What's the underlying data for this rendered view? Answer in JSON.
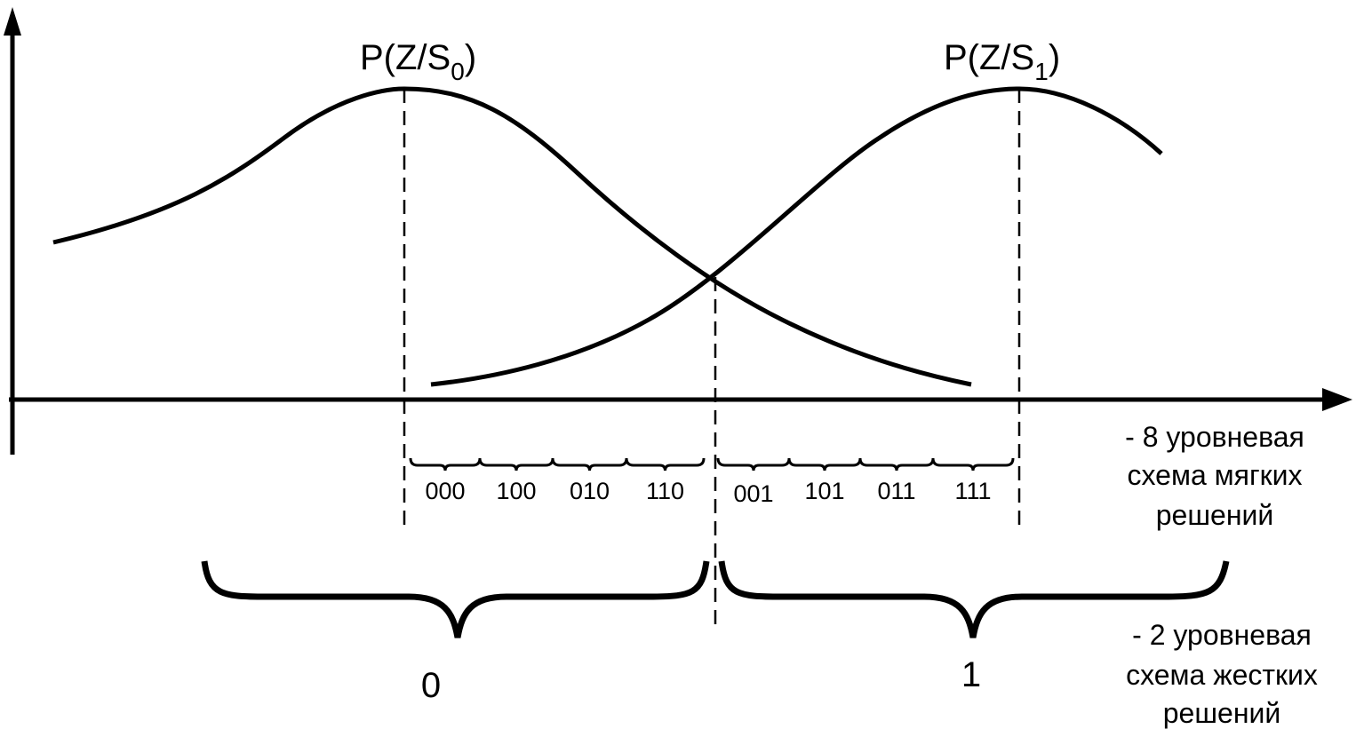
{
  "curves": [
    {
      "label": "P(Z/S",
      "subscript": "0",
      "label_end": ")"
    },
    {
      "label": "P(Z/S",
      "subscript": "1",
      "label_end": ")"
    }
  ],
  "soft_levels": [
    "000",
    "100",
    "010",
    "110",
    "001",
    "101",
    "011",
    "111"
  ],
  "hard_levels": [
    "0",
    "1"
  ],
  "notes": [
    {
      "lines": [
        "-  8 уровневая",
        "схема мягких",
        "решений"
      ]
    },
    {
      "lines": [
        "- 2 уровневая",
        "схема жестких",
        "решений"
      ]
    }
  ]
}
